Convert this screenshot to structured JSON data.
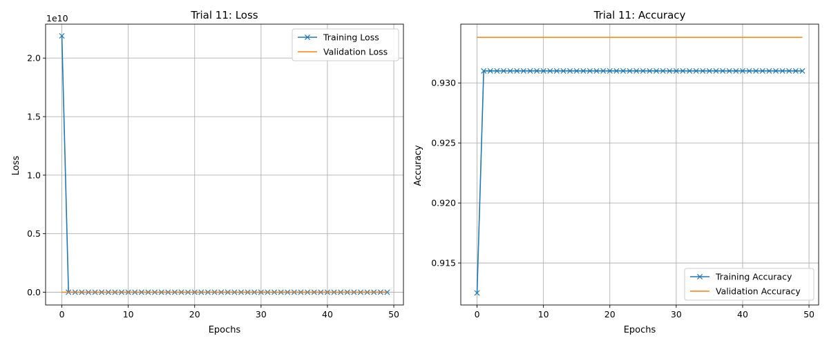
{
  "figure": {
    "background": "#ffffff",
    "grid_color": "#b0b0b0",
    "series_colors": {
      "training": "#1f77b4",
      "validation": "#ff7f0e"
    }
  },
  "chart_data": [
    {
      "type": "line",
      "title": "Trial 11: Loss",
      "xlabel": "Epochs",
      "ylabel": "Loss",
      "y_offset_label": "1e10",
      "y_scale_factor": 10000000000,
      "xlim": [
        -2.45,
        51.45
      ],
      "ylim": [
        -1090000000,
        22900000000
      ],
      "xticks": [
        0,
        10,
        20,
        30,
        40,
        50
      ],
      "xtick_labels": [
        "0",
        "10",
        "20",
        "30",
        "40",
        "50"
      ],
      "yticks": [
        0,
        5000000000,
        10000000000,
        15000000000,
        20000000000
      ],
      "ytick_labels": [
        "0.0",
        "0.5",
        "1.0",
        "1.5",
        "2.0"
      ],
      "grid": true,
      "legend_position": "upper right",
      "series": [
        {
          "name": "Training Loss",
          "color": "#1f77b4",
          "marker": "x",
          "x": [
            0,
            1,
            2,
            3,
            4,
            5,
            6,
            7,
            8,
            9,
            10,
            11,
            12,
            13,
            14,
            15,
            16,
            17,
            18,
            19,
            20,
            21,
            22,
            23,
            24,
            25,
            26,
            27,
            28,
            29,
            30,
            31,
            32,
            33,
            34,
            35,
            36,
            37,
            38,
            39,
            40,
            41,
            42,
            43,
            44,
            45,
            46,
            47,
            48,
            49
          ],
          "y": [
            21900000000,
            0,
            0,
            0,
            0,
            0,
            0,
            0,
            0,
            0,
            0,
            0,
            0,
            0,
            0,
            0,
            0,
            0,
            0,
            0,
            0,
            0,
            0,
            0,
            0,
            0,
            0,
            0,
            0,
            0,
            0,
            0,
            0,
            0,
            0,
            0,
            0,
            0,
            0,
            0,
            0,
            0,
            0,
            0,
            0,
            0,
            0,
            0,
            0,
            0
          ]
        },
        {
          "name": "Validation Loss",
          "color": "#ff7f0e",
          "marker": "none",
          "x": [
            0,
            1,
            2,
            3,
            4,
            5,
            6,
            7,
            8,
            9,
            10,
            11,
            12,
            13,
            14,
            15,
            16,
            17,
            18,
            19,
            20,
            21,
            22,
            23,
            24,
            25,
            26,
            27,
            28,
            29,
            30,
            31,
            32,
            33,
            34,
            35,
            36,
            37,
            38,
            39,
            40,
            41,
            42,
            43,
            44,
            45,
            46,
            47,
            48,
            49
          ],
          "y": [
            0,
            0,
            0,
            0,
            0,
            0,
            0,
            0,
            0,
            0,
            0,
            0,
            0,
            0,
            0,
            0,
            0,
            0,
            0,
            0,
            0,
            0,
            0,
            0,
            0,
            0,
            0,
            0,
            0,
            0,
            0,
            0,
            0,
            0,
            0,
            0,
            0,
            0,
            0,
            0,
            0,
            0,
            0,
            0,
            0,
            0,
            0,
            0,
            0,
            0
          ]
        }
      ]
    },
    {
      "type": "line",
      "title": "Trial 11: Accuracy",
      "xlabel": "Epochs",
      "ylabel": "Accuracy",
      "xlim": [
        -2.45,
        51.45
      ],
      "ylim": [
        0.9115,
        0.9349
      ],
      "xticks": [
        0,
        10,
        20,
        30,
        40,
        50
      ],
      "xtick_labels": [
        "0",
        "10",
        "20",
        "30",
        "40",
        "50"
      ],
      "yticks": [
        0.915,
        0.92,
        0.925,
        0.93
      ],
      "ytick_labels": [
        "0.915",
        "0.920",
        "0.925",
        "0.930"
      ],
      "grid": true,
      "legend_position": "lower right",
      "series": [
        {
          "name": "Training Accuracy",
          "color": "#1f77b4",
          "marker": "x",
          "x": [
            0,
            1,
            2,
            3,
            4,
            5,
            6,
            7,
            8,
            9,
            10,
            11,
            12,
            13,
            14,
            15,
            16,
            17,
            18,
            19,
            20,
            21,
            22,
            23,
            24,
            25,
            26,
            27,
            28,
            29,
            30,
            31,
            32,
            33,
            34,
            35,
            36,
            37,
            38,
            39,
            40,
            41,
            42,
            43,
            44,
            45,
            46,
            47,
            48,
            49
          ],
          "y": [
            0.9125,
            0.931,
            0.931,
            0.931,
            0.931,
            0.931,
            0.931,
            0.931,
            0.931,
            0.931,
            0.931,
            0.931,
            0.931,
            0.931,
            0.931,
            0.931,
            0.931,
            0.931,
            0.931,
            0.931,
            0.931,
            0.931,
            0.931,
            0.931,
            0.931,
            0.931,
            0.931,
            0.931,
            0.931,
            0.931,
            0.931,
            0.931,
            0.931,
            0.931,
            0.931,
            0.931,
            0.931,
            0.931,
            0.931,
            0.931,
            0.931,
            0.931,
            0.931,
            0.931,
            0.931,
            0.931,
            0.931,
            0.931,
            0.931,
            0.931
          ]
        },
        {
          "name": "Validation Accuracy",
          "color": "#ff7f0e",
          "marker": "none",
          "x": [
            0,
            1,
            2,
            3,
            4,
            5,
            6,
            7,
            8,
            9,
            10,
            11,
            12,
            13,
            14,
            15,
            16,
            17,
            18,
            19,
            20,
            21,
            22,
            23,
            24,
            25,
            26,
            27,
            28,
            29,
            30,
            31,
            32,
            33,
            34,
            35,
            36,
            37,
            38,
            39,
            40,
            41,
            42,
            43,
            44,
            45,
            46,
            47,
            48,
            49
          ],
          "y": [
            0.9338,
            0.9338,
            0.9338,
            0.9338,
            0.9338,
            0.9338,
            0.9338,
            0.9338,
            0.9338,
            0.9338,
            0.9338,
            0.9338,
            0.9338,
            0.9338,
            0.9338,
            0.9338,
            0.9338,
            0.9338,
            0.9338,
            0.9338,
            0.9338,
            0.9338,
            0.9338,
            0.9338,
            0.9338,
            0.9338,
            0.9338,
            0.9338,
            0.9338,
            0.9338,
            0.9338,
            0.9338,
            0.9338,
            0.9338,
            0.9338,
            0.9338,
            0.9338,
            0.9338,
            0.9338,
            0.9338,
            0.9338,
            0.9338,
            0.9338,
            0.9338,
            0.9338,
            0.9338,
            0.9338,
            0.9338,
            0.9338,
            0.9338
          ]
        }
      ]
    }
  ]
}
